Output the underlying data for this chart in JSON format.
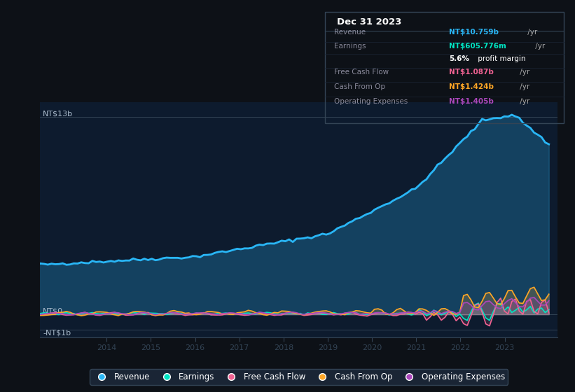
{
  "bg_color": "#0d1117",
  "plot_bg_color": "#0d1b2e",
  "ylabel_top": "NT$13b",
  "ylabel_zero": "NT$0",
  "ylabel_neg": "-NT$1b",
  "x_labels": [
    "2014",
    "2015",
    "2016",
    "2017",
    "2018",
    "2019",
    "2020",
    "2021",
    "2022",
    "2023"
  ],
  "legend": [
    {
      "label": "Revenue",
      "color": "#29b6f6"
    },
    {
      "label": "Earnings",
      "color": "#00e5c3"
    },
    {
      "label": "Free Cash Flow",
      "color": "#f06292"
    },
    {
      "label": "Cash From Op",
      "color": "#ffa726"
    },
    {
      "label": "Operating Expenses",
      "color": "#ab47bc"
    }
  ],
  "revenue_color": "#29b6f6",
  "earnings_color": "#00e5c3",
  "fcf_color": "#f06292",
  "cashfromop_color": "#ffa726",
  "opex_color": "#ab47bc",
  "table_title": "Dec 31 2023",
  "table_rows": [
    {
      "label": "Revenue",
      "value": "NT$10.759b /yr",
      "color": "#29b6f6",
      "label_color": "#888899"
    },
    {
      "label": "Earnings",
      "value": "NT$605.776m /yr",
      "color": "#00e5c3",
      "label_color": "#888899"
    },
    {
      "label": "",
      "value": "5.6% profit margin",
      "color": "#ffffff",
      "label_color": "#888899"
    },
    {
      "label": "Free Cash Flow",
      "value": "NT$1.087b /yr",
      "color": "#f06292",
      "label_color": "#888899"
    },
    {
      "label": "Cash From Op",
      "value": "NT$1.424b /yr",
      "color": "#ffa726",
      "label_color": "#888899"
    },
    {
      "label": "Operating Expenses",
      "value": "NT$1.405b /yr",
      "color": "#ab47bc",
      "label_color": "#888899"
    }
  ]
}
